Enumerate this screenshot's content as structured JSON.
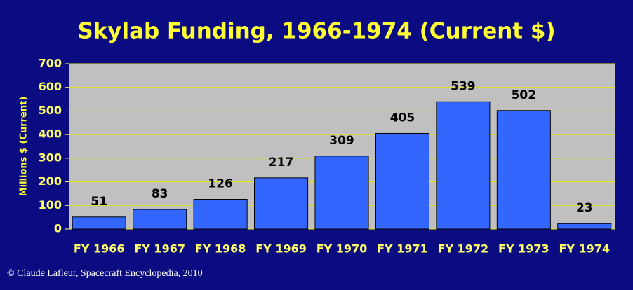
{
  "chart_data": {
    "type": "bar",
    "title": "Skylab Funding, 1966-1974 (Current $)",
    "y_label": "Millions $ (Current)",
    "categories": [
      "FY 1966",
      "FY 1967",
      "FY 1968",
      "FY 1969",
      "FY 1970",
      "FY 1971",
      "FY 1972",
      "FY 1973",
      "FY 1974"
    ],
    "values": [
      51,
      83,
      126,
      217,
      309,
      405,
      539,
      502,
      23
    ],
    "color": "#3366ff",
    "ylim": [
      0,
      700
    ],
    "yticks": [
      0,
      100,
      200,
      300,
      400,
      500,
      600,
      700
    ],
    "grid": true,
    "source": "© Claude Lafleur, Spacecraft Encyclopedia, 2010"
  }
}
